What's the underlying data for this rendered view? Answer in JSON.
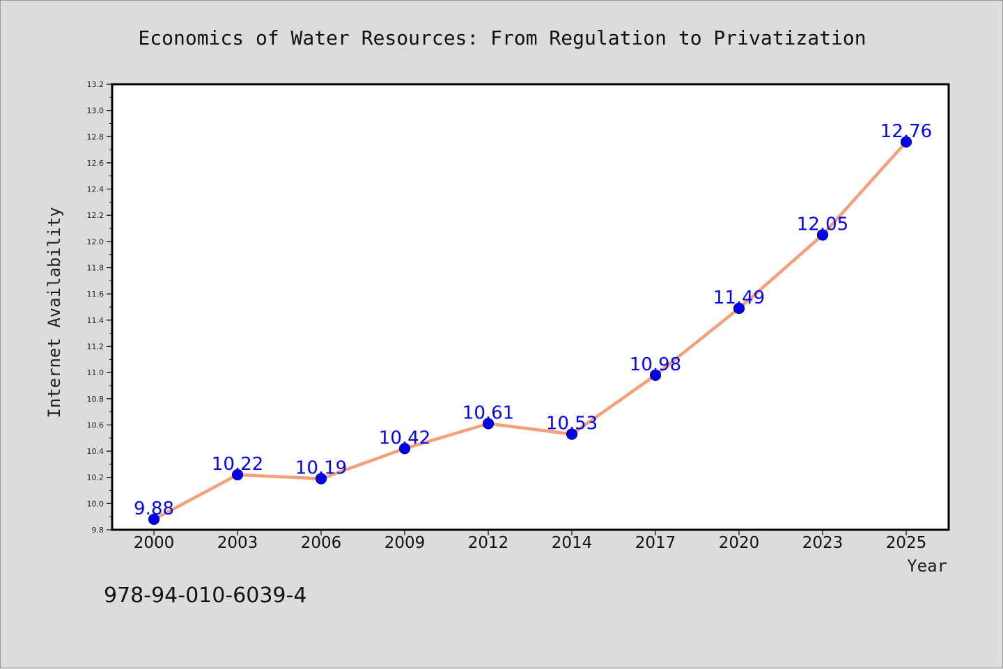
{
  "chart_data": {
    "type": "line",
    "title": "Economics of Water Resources: From Regulation to Privatization",
    "xlabel": "Year",
    "ylabel": "Internet Availability",
    "categories": [
      "2000",
      "2003",
      "2006",
      "2009",
      "2012",
      "2014",
      "2017",
      "2020",
      "2023",
      "2025"
    ],
    "values": [
      9.88,
      10.22,
      10.19,
      10.42,
      10.61,
      10.53,
      10.98,
      11.49,
      12.05,
      12.76
    ],
    "value_labels": [
      "9.88",
      "10.22",
      "10.19",
      "10.42",
      "10.61",
      "10.53",
      "10.98",
      "11.49",
      "12.05",
      "12.76"
    ],
    "ylim": [
      9.8,
      13.2
    ],
    "yticks": [
      "9.8",
      "10.0",
      "10.2",
      "10.4",
      "10.6",
      "10.8",
      "11.0",
      "11.2",
      "11.4",
      "11.6",
      "11.8",
      "12.0",
      "12.2",
      "12.4",
      "12.6",
      "12.8",
      "13.0",
      "13.2"
    ],
    "grid": false,
    "colors": {
      "line": "#f4a07a",
      "marker": "#0000ee",
      "marker_edge": "#00008b",
      "label": "#0000ff"
    }
  },
  "footer_code": "978-94-010-6039-4"
}
